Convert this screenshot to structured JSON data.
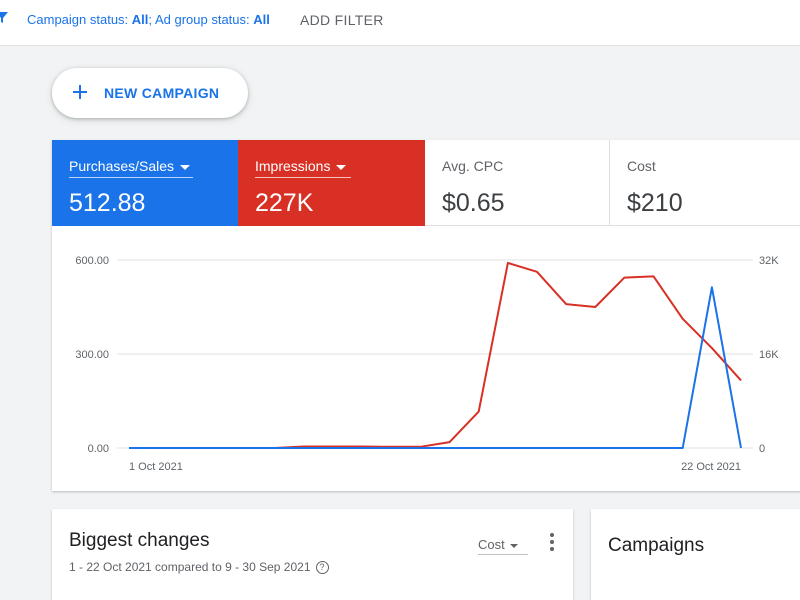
{
  "filter_bar": {
    "campaign_status_label": "Campaign status:",
    "campaign_status_value": "All",
    "separator": ";",
    "ad_group_status_label": "Ad group status:",
    "ad_group_status_value": "All",
    "add_filter": "ADD FILTER"
  },
  "new_campaign": {
    "label": "NEW CAMPAIGN",
    "icon": "plus-icon"
  },
  "scorecards": [
    {
      "label": "Purchases/Sales",
      "value": "512.88",
      "color": "#1a73e8",
      "has_dropdown": true
    },
    {
      "label": "Impressions",
      "value": "227K",
      "color": "#d93025",
      "has_dropdown": true
    },
    {
      "label": "Avg. CPC",
      "value": "$0.65",
      "color": "#ffffff",
      "has_dropdown": false
    },
    {
      "label": "Cost",
      "value": "$210",
      "color": "#ffffff",
      "has_dropdown": false
    }
  ],
  "chart_data": {
    "type": "line",
    "title": "",
    "x_labels": [
      "1 Oct 2021",
      "22 Oct 2021"
    ],
    "x": [
      "1 Oct",
      "2 Oct",
      "3 Oct",
      "4 Oct",
      "5 Oct",
      "6 Oct",
      "7 Oct",
      "8 Oct",
      "9 Oct",
      "10 Oct",
      "11 Oct",
      "12 Oct",
      "13 Oct",
      "14 Oct",
      "15 Oct",
      "16 Oct",
      "17 Oct",
      "18 Oct",
      "19 Oct",
      "20 Oct",
      "21 Oct",
      "22 Oct"
    ],
    "y_left": {
      "ticks": [
        "600.00",
        "300.00",
        "0.00"
      ],
      "range": [
        0,
        600
      ]
    },
    "y_right": {
      "ticks": [
        "32K",
        "16K",
        "0"
      ],
      "range": [
        0,
        32000
      ]
    },
    "series": [
      {
        "color": "#d93025",
        "axis": "right",
        "values": [
          0,
          0,
          0,
          0,
          0,
          0,
          250,
          250,
          250,
          200,
          200,
          1000,
          6200,
          31500,
          30000,
          24500,
          24000,
          29000,
          29200,
          22000,
          17000,
          11500
        ]
      },
      {
        "color": "#1a73e8",
        "axis": "left",
        "values": [
          0,
          0,
          0,
          0,
          0,
          0,
          0,
          0,
          0,
          0,
          0,
          0,
          0,
          0,
          0,
          0,
          0,
          0,
          0,
          0,
          512.88,
          0
        ]
      }
    ],
    "grid": true
  },
  "biggest_changes": {
    "title": "Biggest changes",
    "subtitle": "1 - 22 Oct 2021 compared to 9 - 30 Sep 2021",
    "help_icon": "?",
    "metric_select": "Cost",
    "menu_icon": "more-vert-icon"
  },
  "campaigns_panel": {
    "title": "Campaigns"
  }
}
